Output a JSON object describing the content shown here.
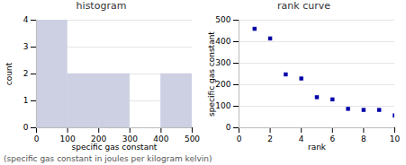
{
  "chart_data": [
    {
      "type": "histogram",
      "title": "histogram",
      "xlabel": "specific gas constant",
      "ylabel": "count",
      "bins": [
        0,
        100,
        200,
        300,
        400,
        500
      ],
      "values": [
        4,
        2,
        2,
        0,
        2
      ],
      "color": "#cdd0e3",
      "xlim": [
        0,
        500
      ],
      "ylim": [
        0,
        4
      ],
      "xticks": [
        0,
        100,
        200,
        300,
        400,
        500
      ],
      "yticks": [
        0,
        1,
        2,
        3,
        4
      ],
      "grid": true
    },
    {
      "type": "scatter",
      "title": "rank curve",
      "xlabel": "rank",
      "ylabel": "specific gas constant",
      "x": [
        1,
        2,
        3,
        4,
        5,
        6,
        7,
        8,
        9,
        10
      ],
      "values": [
        460,
        415,
        248,
        229,
        142,
        132,
        88,
        83,
        83,
        57
      ],
      "color": "#0000aa",
      "marker": "square",
      "xlim": [
        0,
        10
      ],
      "ylim": [
        0,
        500
      ],
      "xticks": [
        0,
        2,
        4,
        6,
        8,
        10
      ],
      "yticks": [
        0,
        100,
        200,
        300,
        400,
        500
      ],
      "grid": true
    }
  ],
  "footnote": "(specific gas constant in joules per kilogram kelvin)"
}
